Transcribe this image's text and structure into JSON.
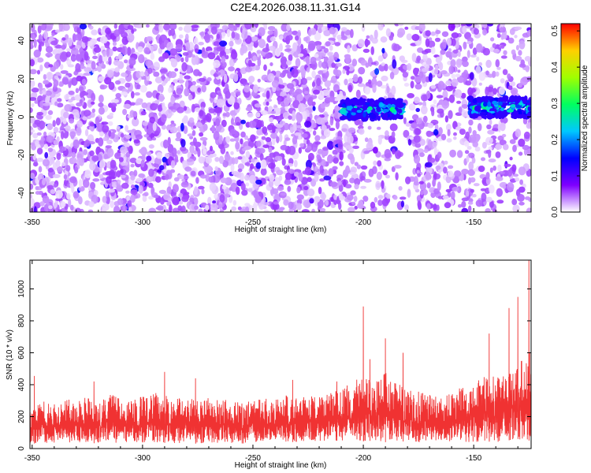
{
  "title": "C2E4.2026.038.11.31.G14",
  "colors": {
    "snr_line": "#f03232",
    "background": "#ffffff",
    "colormap": [
      "#ffffff",
      "#7f00ff",
      "#0000ff",
      "#00c8ff",
      "#00ff60",
      "#a0ff00",
      "#ffd000",
      "#ff0000"
    ]
  },
  "chart_data": [
    {
      "type": "heatmap",
      "title": "",
      "xlabel": "Height of straight line (km)",
      "ylabel": "Frequency (Hz)",
      "xlim": [
        -351,
        -124
      ],
      "ylim": [
        -50,
        49
      ],
      "x_ticks": [
        -350,
        -300,
        -250,
        -200,
        -150
      ],
      "y_ticks": [
        -40,
        -20,
        0,
        20,
        40
      ],
      "grid": false,
      "colorbar": {
        "label": "Normalized spectral amplitude",
        "range": [
          0.0,
          0.52
        ],
        "ticks": [
          "0.0",
          "0.1",
          "0.2",
          "0.3",
          "0.4",
          "0.5"
        ]
      },
      "features": [
        {
          "x_range": [
            -210,
            -182
          ],
          "frequency": 4,
          "peak_amplitude": 0.32
        },
        {
          "x_range": [
            -152,
            -124
          ],
          "frequency": 5,
          "peak_amplitude": 0.34
        }
      ],
      "typical_background_amplitude": 0.03
    },
    {
      "type": "line",
      "title": "",
      "xlabel": "Height of straight line (km)",
      "ylabel": "SNR (10 * v/v)",
      "xlim": [
        -351,
        -124
      ],
      "ylim": [
        0,
        1180
      ],
      "x_ticks": [
        -350,
        -300,
        -250,
        -200,
        -150
      ],
      "y_ticks": [
        0,
        200,
        400,
        600,
        800,
        1000
      ],
      "grid": false,
      "series": [
        {
          "color": "#f03232",
          "x": [
            -351,
            -345,
            -340,
            -335,
            -330,
            -325,
            -320,
            -315,
            -310,
            -305,
            -300,
            -295,
            -290,
            -285,
            -280,
            -275,
            -270,
            -265,
            -260,
            -255,
            -250,
            -245,
            -240,
            -235,
            -230,
            -225,
            -220,
            -215,
            -210,
            -205,
            -200,
            -195,
            -190,
            -185,
            -180,
            -175,
            -170,
            -165,
            -160,
            -155,
            -150,
            -145,
            -140,
            -135,
            -130,
            -126,
            -124
          ],
          "lower": [
            30,
            35,
            28,
            40,
            32,
            38,
            30,
            36,
            34,
            30,
            38,
            40,
            36,
            32,
            35,
            30,
            38,
            34,
            36,
            30,
            40,
            36,
            38,
            42,
            40,
            45,
            42,
            48,
            50,
            55,
            45,
            50,
            40,
            48,
            42,
            38,
            40,
            35,
            42,
            40,
            38,
            45,
            40,
            50,
            60,
            40,
            60
          ],
          "upper": [
            260,
            300,
            280,
            310,
            300,
            330,
            290,
            340,
            320,
            300,
            330,
            350,
            340,
            310,
            330,
            300,
            320,
            310,
            300,
            290,
            310,
            320,
            330,
            340,
            320,
            330,
            320,
            350,
            370,
            420,
            450,
            420,
            480,
            420,
            380,
            360,
            340,
            330,
            360,
            400,
            430,
            450,
            470,
            480,
            520,
            600,
            700
          ],
          "peaks": [
            {
              "x": -349,
              "y": 455
            },
            {
              "x": -322,
              "y": 420
            },
            {
              "x": -290,
              "y": 480
            },
            {
              "x": -276,
              "y": 440
            },
            {
              "x": -232,
              "y": 430
            },
            {
              "x": -212,
              "y": 420
            },
            {
              "x": -200,
              "y": 890
            },
            {
              "x": -197,
              "y": 560
            },
            {
              "x": -190,
              "y": 690
            },
            {
              "x": -182,
              "y": 600
            },
            {
              "x": -143,
              "y": 720
            },
            {
              "x": -134,
              "y": 880
            },
            {
              "x": -130,
              "y": 950
            },
            {
              "x": -125,
              "y": 1180
            }
          ]
        }
      ]
    }
  ]
}
